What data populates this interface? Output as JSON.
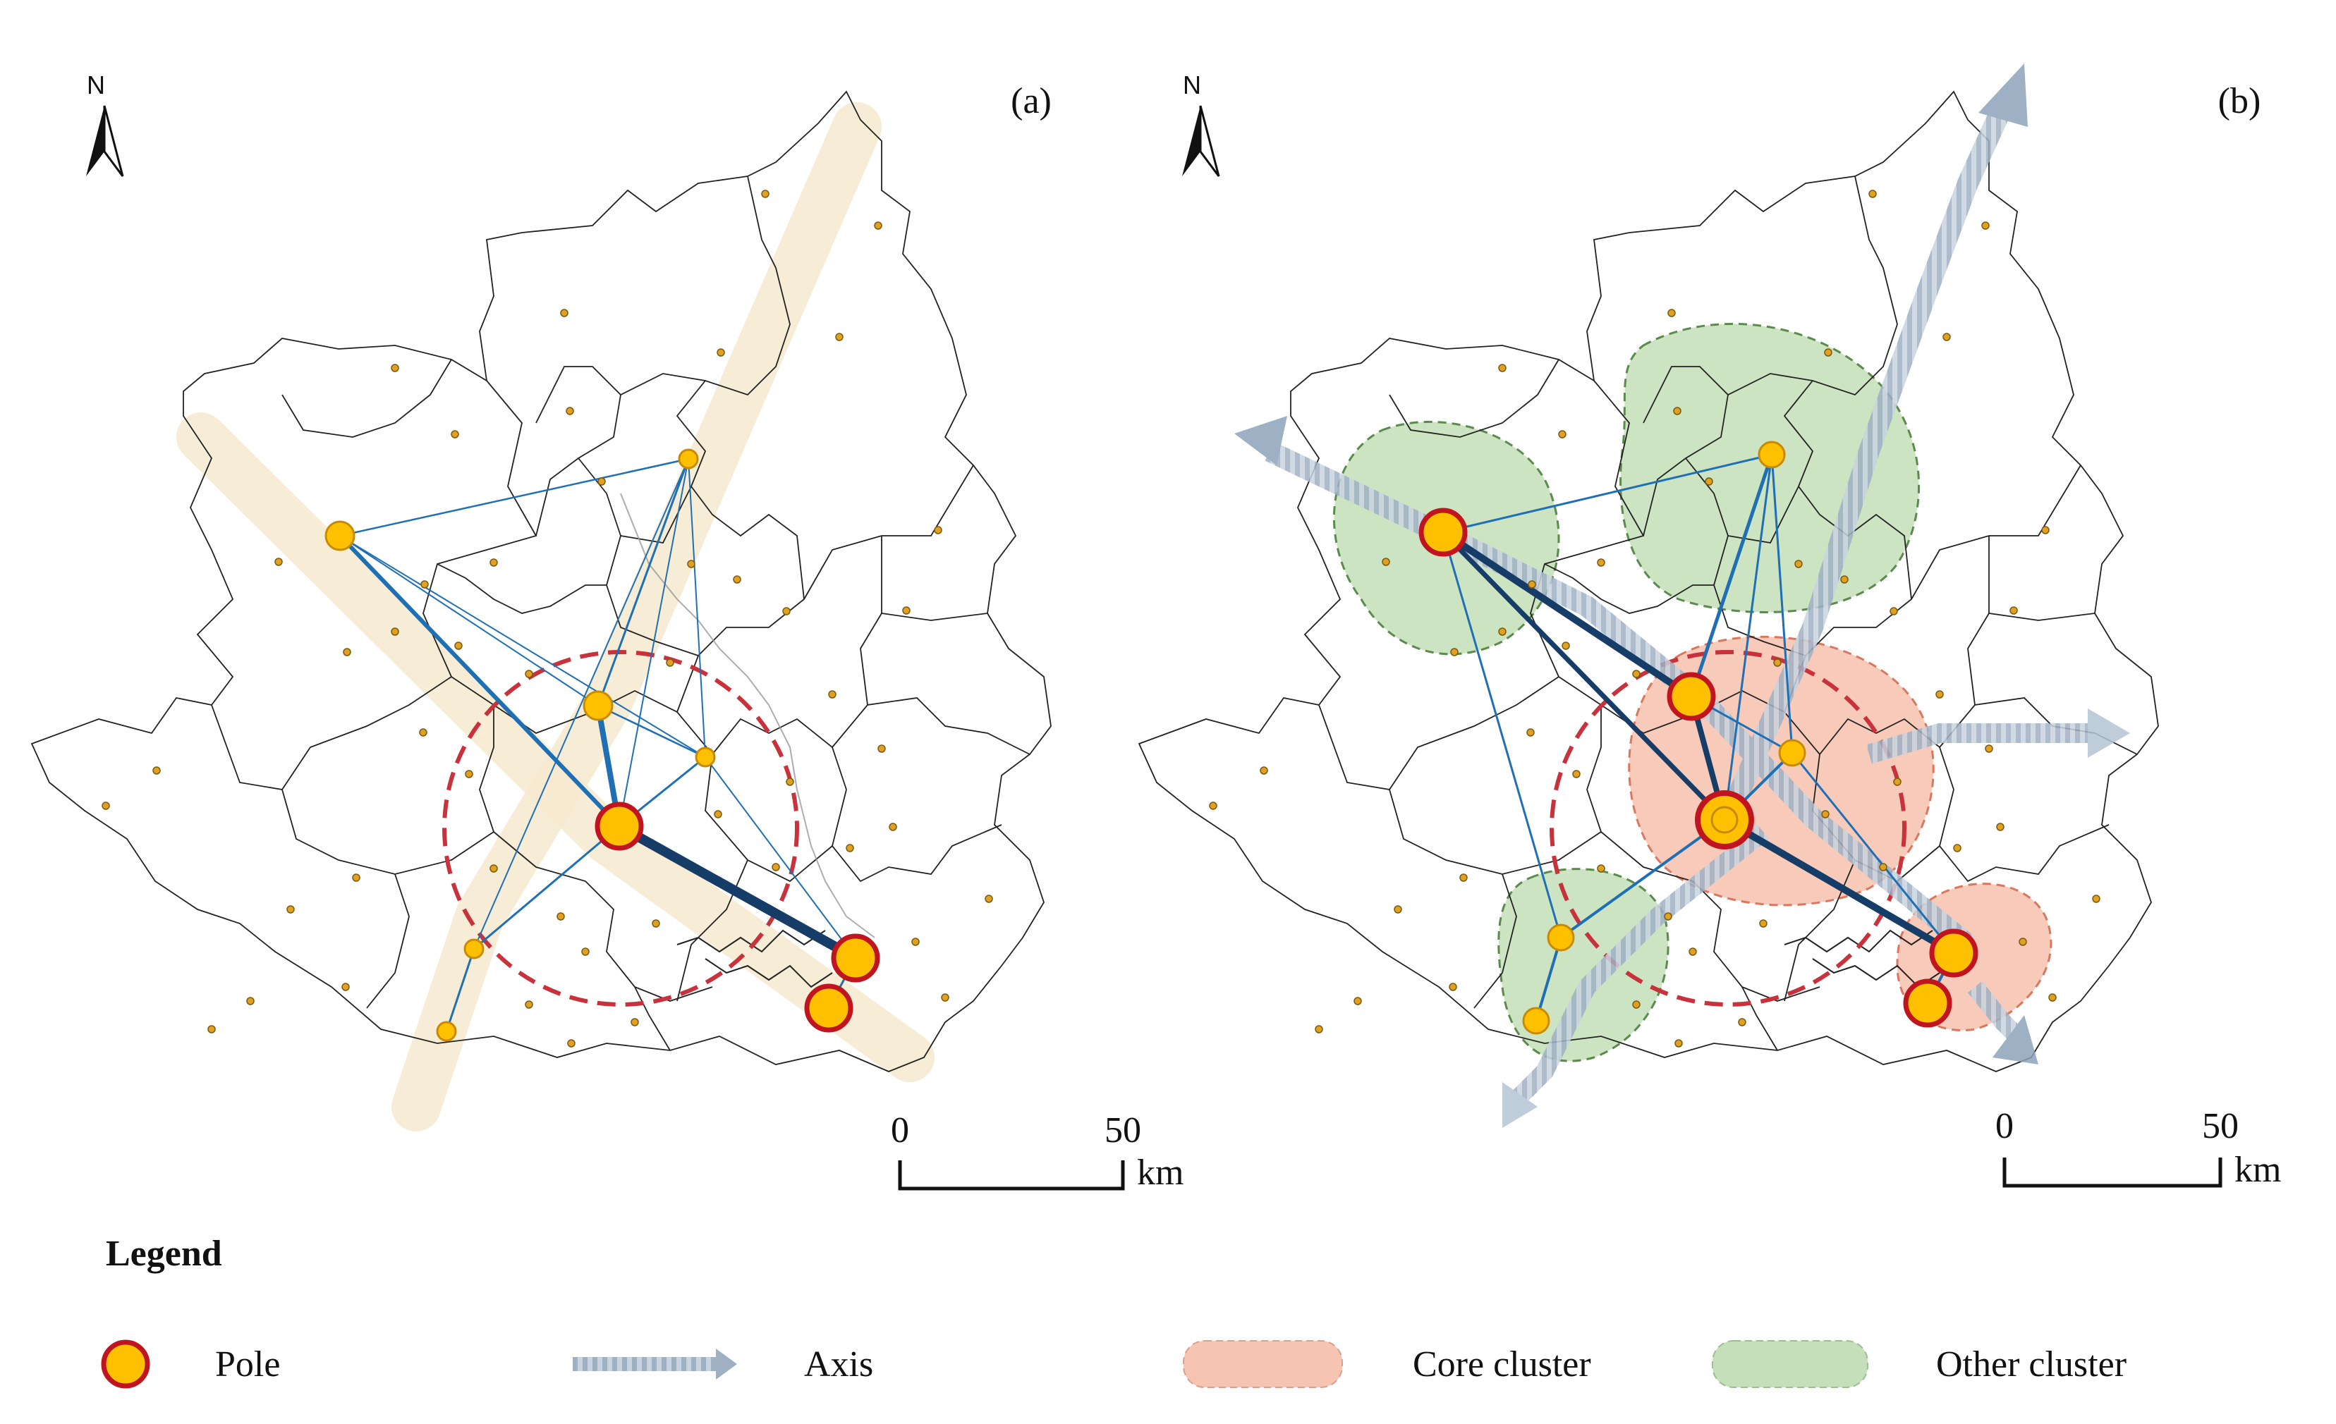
{
  "panels": [
    {
      "label": "(a)",
      "north_label": "N",
      "scale": {
        "start": "0",
        "end": "50",
        "unit": "km"
      }
    },
    {
      "label": "(b)",
      "north_label": "N",
      "scale": {
        "start": "0",
        "end": "50",
        "unit": "km"
      }
    }
  ],
  "legend": {
    "title": "Legend",
    "items": [
      {
        "label": "Pole",
        "symbol": "pole"
      },
      {
        "label": "Axis",
        "symbol": "axis"
      },
      {
        "label": "Core cluster",
        "symbol": "core-cluster"
      },
      {
        "label": "Other cluster",
        "symbol": "other-cluster"
      }
    ]
  },
  "colors": {
    "pole_fill": "#ffc000",
    "pole_stroke": "#c0141e",
    "node_fill": "#ffc000",
    "node_stroke": "#c88a00",
    "link_blue": "#1f6fb5",
    "link_dark": "#163c68",
    "core_cluster": "#f7c4b2",
    "other_cluster": "#c4dfb9",
    "axis": "#aebccd",
    "corridor": "#f7ebd2",
    "ring": "#c8323c"
  }
}
